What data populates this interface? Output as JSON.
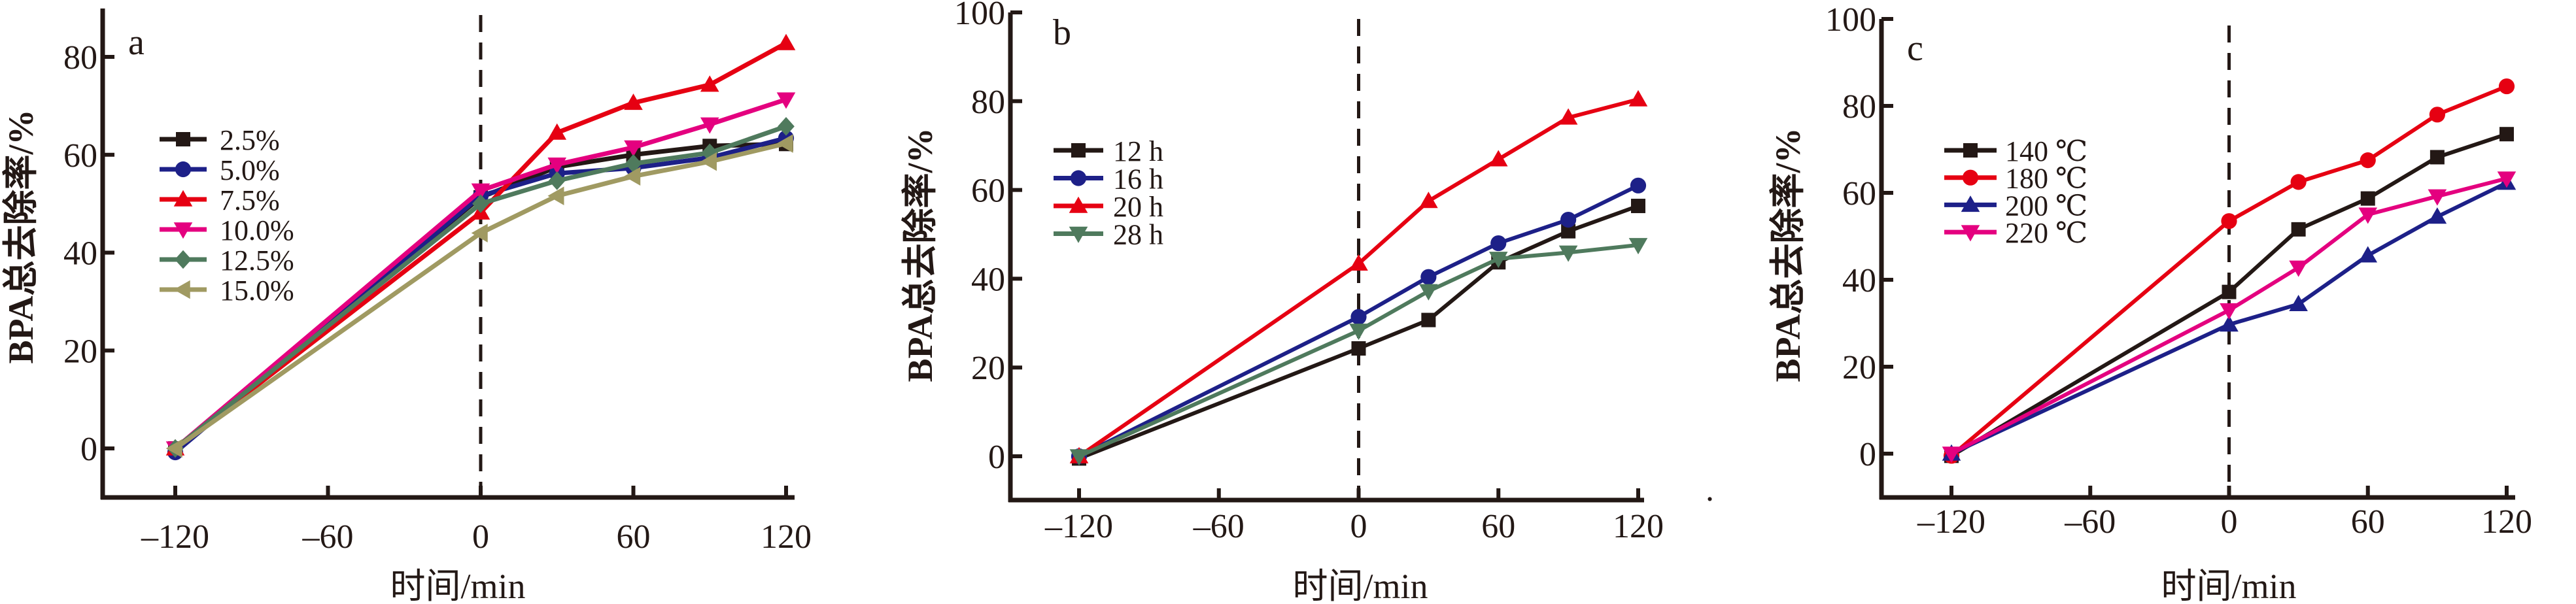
{
  "chart_data": [
    {
      "panel": "a",
      "type": "line",
      "panel_label": "a",
      "xlabel": "时间/min",
      "ylabel": "BPA总去除率/%",
      "x": [
        -120,
        0,
        30,
        60,
        90,
        120
      ],
      "xticks": [
        "-120",
        "-60",
        "0",
        "60",
        "120"
      ],
      "xtick_values": [
        -120,
        -60,
        0,
        60,
        120
      ],
      "yticks": [
        "0",
        "20",
        "40",
        "60",
        "80"
      ],
      "ytick_values": [
        0,
        20,
        40,
        60,
        80
      ],
      "xlim": [
        -150,
        123
      ],
      "ylim": [
        -10,
        90
      ],
      "reference_line_x": 0,
      "legend_position": "center-left",
      "series": [
        {
          "name": "2.5%",
          "color": "#231815",
          "marker": "square",
          "values": [
            0,
            51.3,
            57.5,
            60.0,
            61.8,
            62.2
          ]
        },
        {
          "name": "5.0%",
          "color": "#1d2088",
          "marker": "circle",
          "values": [
            -0.8,
            51.6,
            56.2,
            57.3,
            59.4,
            63.4
          ]
        },
        {
          "name": "7.5%",
          "color": "#e60012",
          "marker": "triangle-up",
          "values": [
            0,
            48.2,
            64.5,
            70.6,
            74.3,
            82.8
          ]
        },
        {
          "name": "10.0%",
          "color": "#e4007f",
          "marker": "triangle-down",
          "values": [
            0,
            52.7,
            58.0,
            61.5,
            66.2,
            71.3
          ]
        },
        {
          "name": "12.5%",
          "color": "#4f7a5d",
          "marker": "diamond",
          "values": [
            0,
            50.0,
            54.7,
            58.2,
            60.4,
            65.8
          ]
        },
        {
          "name": "15.0%",
          "color": "#a09a62",
          "marker": "triangle-left",
          "values": [
            0,
            44.0,
            51.6,
            55.6,
            58.6,
            62.3
          ]
        }
      ]
    },
    {
      "panel": "b",
      "type": "line",
      "panel_label": "b",
      "xlabel": "时间/min",
      "ylabel": "BPA总去除率/%",
      "x": [
        -120,
        0,
        30,
        60,
        90,
        120
      ],
      "xticks": [
        "-120",
        "-60",
        "0",
        "60",
        "120"
      ],
      "xtick_values": [
        -120,
        -60,
        0,
        60,
        120
      ],
      "yticks": [
        "0",
        "20",
        "40",
        "60",
        "80",
        "100"
      ],
      "ytick_values": [
        0,
        20,
        40,
        60,
        80,
        100
      ],
      "xlim": [
        -160,
        123
      ],
      "ylim": [
        -10,
        100
      ],
      "reference_line_x": 0,
      "legend_position": "center-left",
      "series": [
        {
          "name": "12 h",
          "color": "#231815",
          "marker": "square",
          "values": [
            -0.5,
            24.3,
            30.7,
            43.7,
            50.7,
            56.4
          ]
        },
        {
          "name": "16 h",
          "color": "#1d2088",
          "marker": "circle",
          "values": [
            0,
            31.4,
            40.4,
            48.0,
            53.3,
            61.0
          ]
        },
        {
          "name": "20 h",
          "color": "#e60012",
          "marker": "triangle-up",
          "values": [
            0,
            43.4,
            57.5,
            66.9,
            76.3,
            80.4
          ]
        },
        {
          "name": "28 h",
          "color": "#4f7a5d",
          "marker": "triangle-down",
          "values": [
            0,
            28.3,
            37.2,
            44.5,
            45.9,
            47.6
          ]
        }
      ]
    },
    {
      "panel": "c",
      "type": "line",
      "panel_label": "c",
      "xlabel": "时间/min",
      "ylabel": "BPA总去除率/%",
      "x": [
        -120,
        0,
        30,
        60,
        90,
        120
      ],
      "xticks": [
        "-120",
        "-60",
        "0",
        "60",
        "120"
      ],
      "xtick_values": [
        -120,
        -60,
        0,
        60,
        120
      ],
      "yticks": [
        "0",
        "20",
        "40",
        "60",
        "80",
        "100"
      ],
      "ytick_values": [
        0,
        20,
        40,
        60,
        80,
        100
      ],
      "xlim": [
        -150,
        123
      ],
      "ylim": [
        -10,
        100
      ],
      "reference_line_x": 0,
      "legend_position": "center-left",
      "series": [
        {
          "name": "140 ℃",
          "color": "#231815",
          "marker": "square",
          "values": [
            -0.5,
            37.2,
            51.6,
            58.7,
            68.2,
            73.5
          ]
        },
        {
          "name": "180 ℃",
          "color": "#e60012",
          "marker": "circle",
          "values": [
            -0.5,
            53.5,
            62.5,
            67.5,
            78.0,
            84.5
          ]
        },
        {
          "name": "200 ℃",
          "color": "#1d2088",
          "marker": "triangle-up",
          "values": [
            0,
            29.7,
            34.4,
            45.6,
            54.5,
            62.3
          ]
        },
        {
          "name": "220 ℃",
          "color": "#e4007f",
          "marker": "triangle-down",
          "values": [
            0,
            33.0,
            42.8,
            55.0,
            59.2,
            63.3
          ]
        }
      ]
    }
  ],
  "figure": {
    "stray_mark": "."
  }
}
